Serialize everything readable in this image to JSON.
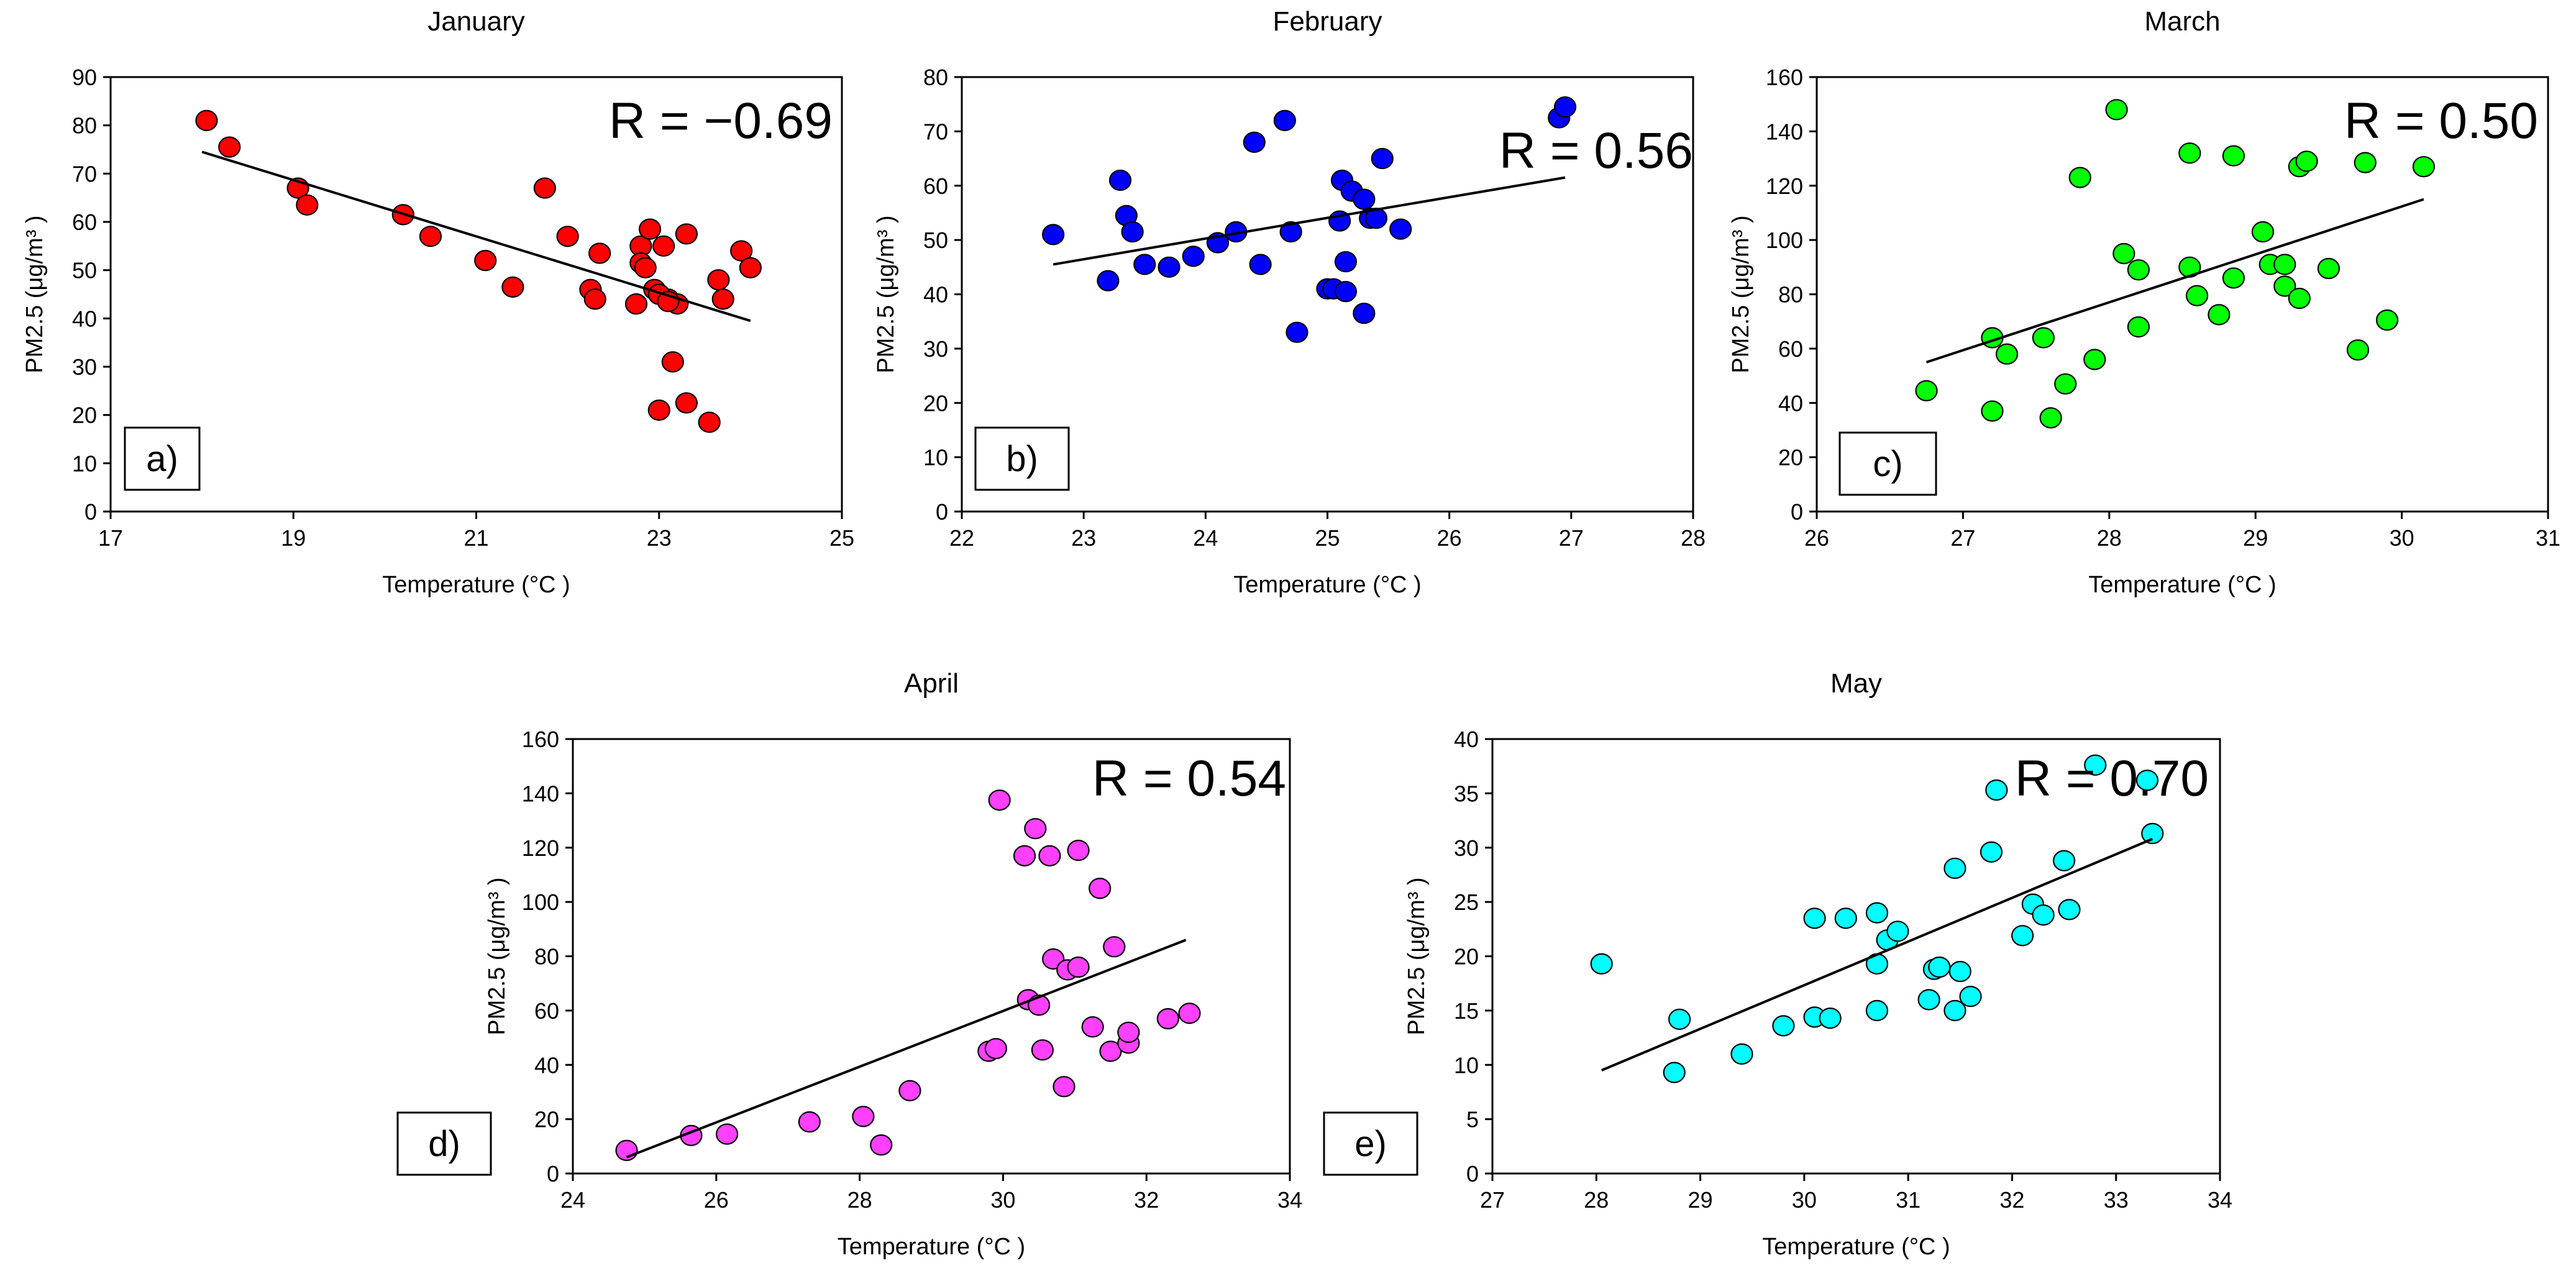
{
  "chart_data": [
    {
      "type": "scatter",
      "title": "January",
      "xlabel": "Temperature (°C )",
      "ylabel": "PM2.5 (μg/m³ )",
      "xlim": [
        17,
        25
      ],
      "ylim": [
        0,
        90
      ],
      "xticks": [
        17,
        19,
        21,
        23,
        25
      ],
      "yticks": [
        0,
        10,
        20,
        30,
        40,
        50,
        60,
        70,
        80,
        90
      ],
      "r_label": "R = −0.69",
      "panel_label": "a)",
      "color": "#ff0000",
      "trendline": {
        "x": [
          18.0,
          24.0
        ],
        "y": [
          74.5,
          39.5
        ]
      },
      "x": [
        18.05,
        18.3,
        19.05,
        19.15,
        20.2,
        20.5,
        21.1,
        21.4,
        21.75,
        22.0,
        22.25,
        22.3,
        22.35,
        22.75,
        22.8,
        22.8,
        22.85,
        22.9,
        22.95,
        23.0,
        23.05,
        23.1,
        23.15,
        23.2,
        23.3,
        23.3,
        23.55,
        23.65,
        23.7,
        23.9,
        24.0,
        23.0,
        23.1
      ],
      "y": [
        81,
        75.5,
        67,
        63.5,
        61.5,
        57,
        52,
        46.5,
        67,
        57,
        46,
        44,
        53.5,
        43,
        55,
        51.5,
        50.5,
        58.5,
        46,
        21,
        55,
        44,
        31,
        43,
        57.5,
        22.5,
        18.5,
        48,
        44,
        54,
        50.5,
        45,
        43.5
      ]
    },
    {
      "type": "scatter",
      "title": "February",
      "xlabel": "Temperature (°C )",
      "ylabel": "PM2.5 (μg/m³ )",
      "xlim": [
        22,
        28
      ],
      "ylim": [
        0,
        80
      ],
      "xticks": [
        22,
        23,
        24,
        25,
        26,
        27,
        28
      ],
      "yticks": [
        0,
        10,
        20,
        30,
        40,
        50,
        60,
        70,
        80
      ],
      "r_label": "R = 0.56",
      "panel_label": "b)",
      "color": "#0000ff",
      "trendline": {
        "x": [
          22.75,
          26.95
        ],
        "y": [
          45.5,
          61.5
        ]
      },
      "x": [
        22.75,
        23.2,
        23.3,
        23.35,
        23.4,
        23.5,
        23.7,
        23.9,
        24.1,
        24.25,
        24.4,
        24.45,
        24.65,
        24.7,
        24.75,
        25.0,
        25.05,
        25.1,
        25.12,
        25.15,
        25.15,
        25.2,
        25.3,
        25.3,
        25.35,
        25.4,
        25.45,
        25.6,
        26.9,
        26.95
      ],
      "y": [
        51,
        42.5,
        61,
        54.5,
        51.5,
        45.5,
        45,
        47,
        49.5,
        51.5,
        68,
        45.5,
        72,
        51.5,
        33,
        41,
        41,
        53.5,
        61,
        40.5,
        46,
        59,
        57.5,
        36.5,
        54,
        54,
        65,
        52,
        72.5,
        74.5
      ]
    },
    {
      "type": "scatter",
      "title": "March",
      "xlabel": "Temperature (°C )",
      "ylabel": "PM2.5 (μg/m³ )",
      "xlim": [
        26,
        31
      ],
      "ylim": [
        0,
        160
      ],
      "xticks": [
        26,
        27,
        28,
        29,
        30,
        31
      ],
      "yticks": [
        0,
        20,
        40,
        60,
        80,
        100,
        120,
        140,
        160
      ],
      "r_label": "R = 0.50",
      "panel_label": "c)",
      "color": "#00ff00",
      "trendline": {
        "x": [
          26.75,
          30.15
        ],
        "y": [
          55,
          115
        ]
      },
      "x": [
        26.75,
        27.2,
        27.2,
        27.3,
        27.55,
        27.6,
        27.7,
        27.8,
        27.9,
        28.05,
        28.1,
        28.2,
        28.2,
        28.55,
        28.55,
        28.6,
        28.75,
        28.85,
        28.85,
        29.05,
        29.1,
        29.2,
        29.2,
        29.3,
        29.3,
        29.35,
        29.5,
        29.7,
        29.75,
        29.9,
        30.15
      ],
      "y": [
        44.5,
        37,
        64,
        58,
        64,
        34.5,
        47,
        123,
        56,
        148,
        95,
        68,
        89,
        132,
        90,
        79.5,
        72.5,
        131,
        86,
        103,
        91,
        91,
        83,
        78.5,
        127,
        129,
        89.5,
        59.5,
        128.5,
        70.5,
        127
      ]
    },
    {
      "type": "scatter",
      "title": "April",
      "xlabel": "Temperature (°C )",
      "ylabel": "PM2.5 (μg/m³ )",
      "xlim": [
        24,
        34
      ],
      "ylim": [
        0,
        160
      ],
      "xticks": [
        24,
        26,
        28,
        30,
        32,
        34
      ],
      "yticks": [
        0,
        20,
        40,
        60,
        80,
        100,
        120,
        140,
        160
      ],
      "r_label": "R = 0.54",
      "panel_label": "d)",
      "color": "#ff40ff",
      "trendline": {
        "x": [
          24.75,
          32.55
        ],
        "y": [
          6,
          86
        ]
      },
      "x": [
        24.75,
        25.65,
        26.15,
        27.3,
        28.05,
        28.3,
        28.7,
        29.8,
        29.9,
        29.95,
        30.3,
        30.35,
        30.45,
        30.5,
        30.55,
        30.65,
        30.7,
        30.85,
        30.9,
        31.05,
        31.05,
        31.25,
        31.35,
        31.5,
        31.55,
        31.75,
        31.75,
        32.3,
        32.6
      ],
      "y": [
        8.5,
        14,
        14.5,
        19,
        21,
        10.5,
        30.5,
        45,
        46,
        137.5,
        117,
        64,
        127,
        62,
        45.5,
        117,
        79,
        32,
        75,
        76,
        119,
        54,
        105,
        45,
        83.5,
        48,
        52,
        57,
        59
      ]
    },
    {
      "type": "scatter",
      "title": "May",
      "xlabel": "Temperature (°C )",
      "ylabel": "PM2.5 (μg/m³ )",
      "xlim": [
        27,
        34
      ],
      "ylim": [
        0,
        40
      ],
      "xticks": [
        27,
        28,
        29,
        30,
        31,
        32,
        33,
        34
      ],
      "yticks": [
        0,
        5,
        10,
        15,
        20,
        25,
        30,
        35,
        40
      ],
      "r_label": "R = 0.70",
      "panel_label": "e)",
      "color": "#00ffff",
      "trendline": {
        "x": [
          28.05,
          33.35
        ],
        "y": [
          9.5,
          30.8
        ]
      },
      "x": [
        28.05,
        28.75,
        28.8,
        29.4,
        29.8,
        30.1,
        30.1,
        30.25,
        30.4,
        30.7,
        30.7,
        30.7,
        30.8,
        30.9,
        31.2,
        31.25,
        31.3,
        31.45,
        31.45,
        31.5,
        31.6,
        31.8,
        31.85,
        32.1,
        32.2,
        32.3,
        32.5,
        32.55,
        32.8,
        33.3,
        33.35
      ],
      "y": [
        19.3,
        9.3,
        14.2,
        11,
        13.6,
        14.4,
        23.5,
        14.3,
        23.5,
        24,
        19.3,
        15,
        21.5,
        22.3,
        16,
        18.8,
        19,
        15,
        28.1,
        18.6,
        16.3,
        29.6,
        35.3,
        21.9,
        24.8,
        23.8,
        28.8,
        24.3,
        37.6,
        36.2,
        31.3
      ]
    }
  ]
}
